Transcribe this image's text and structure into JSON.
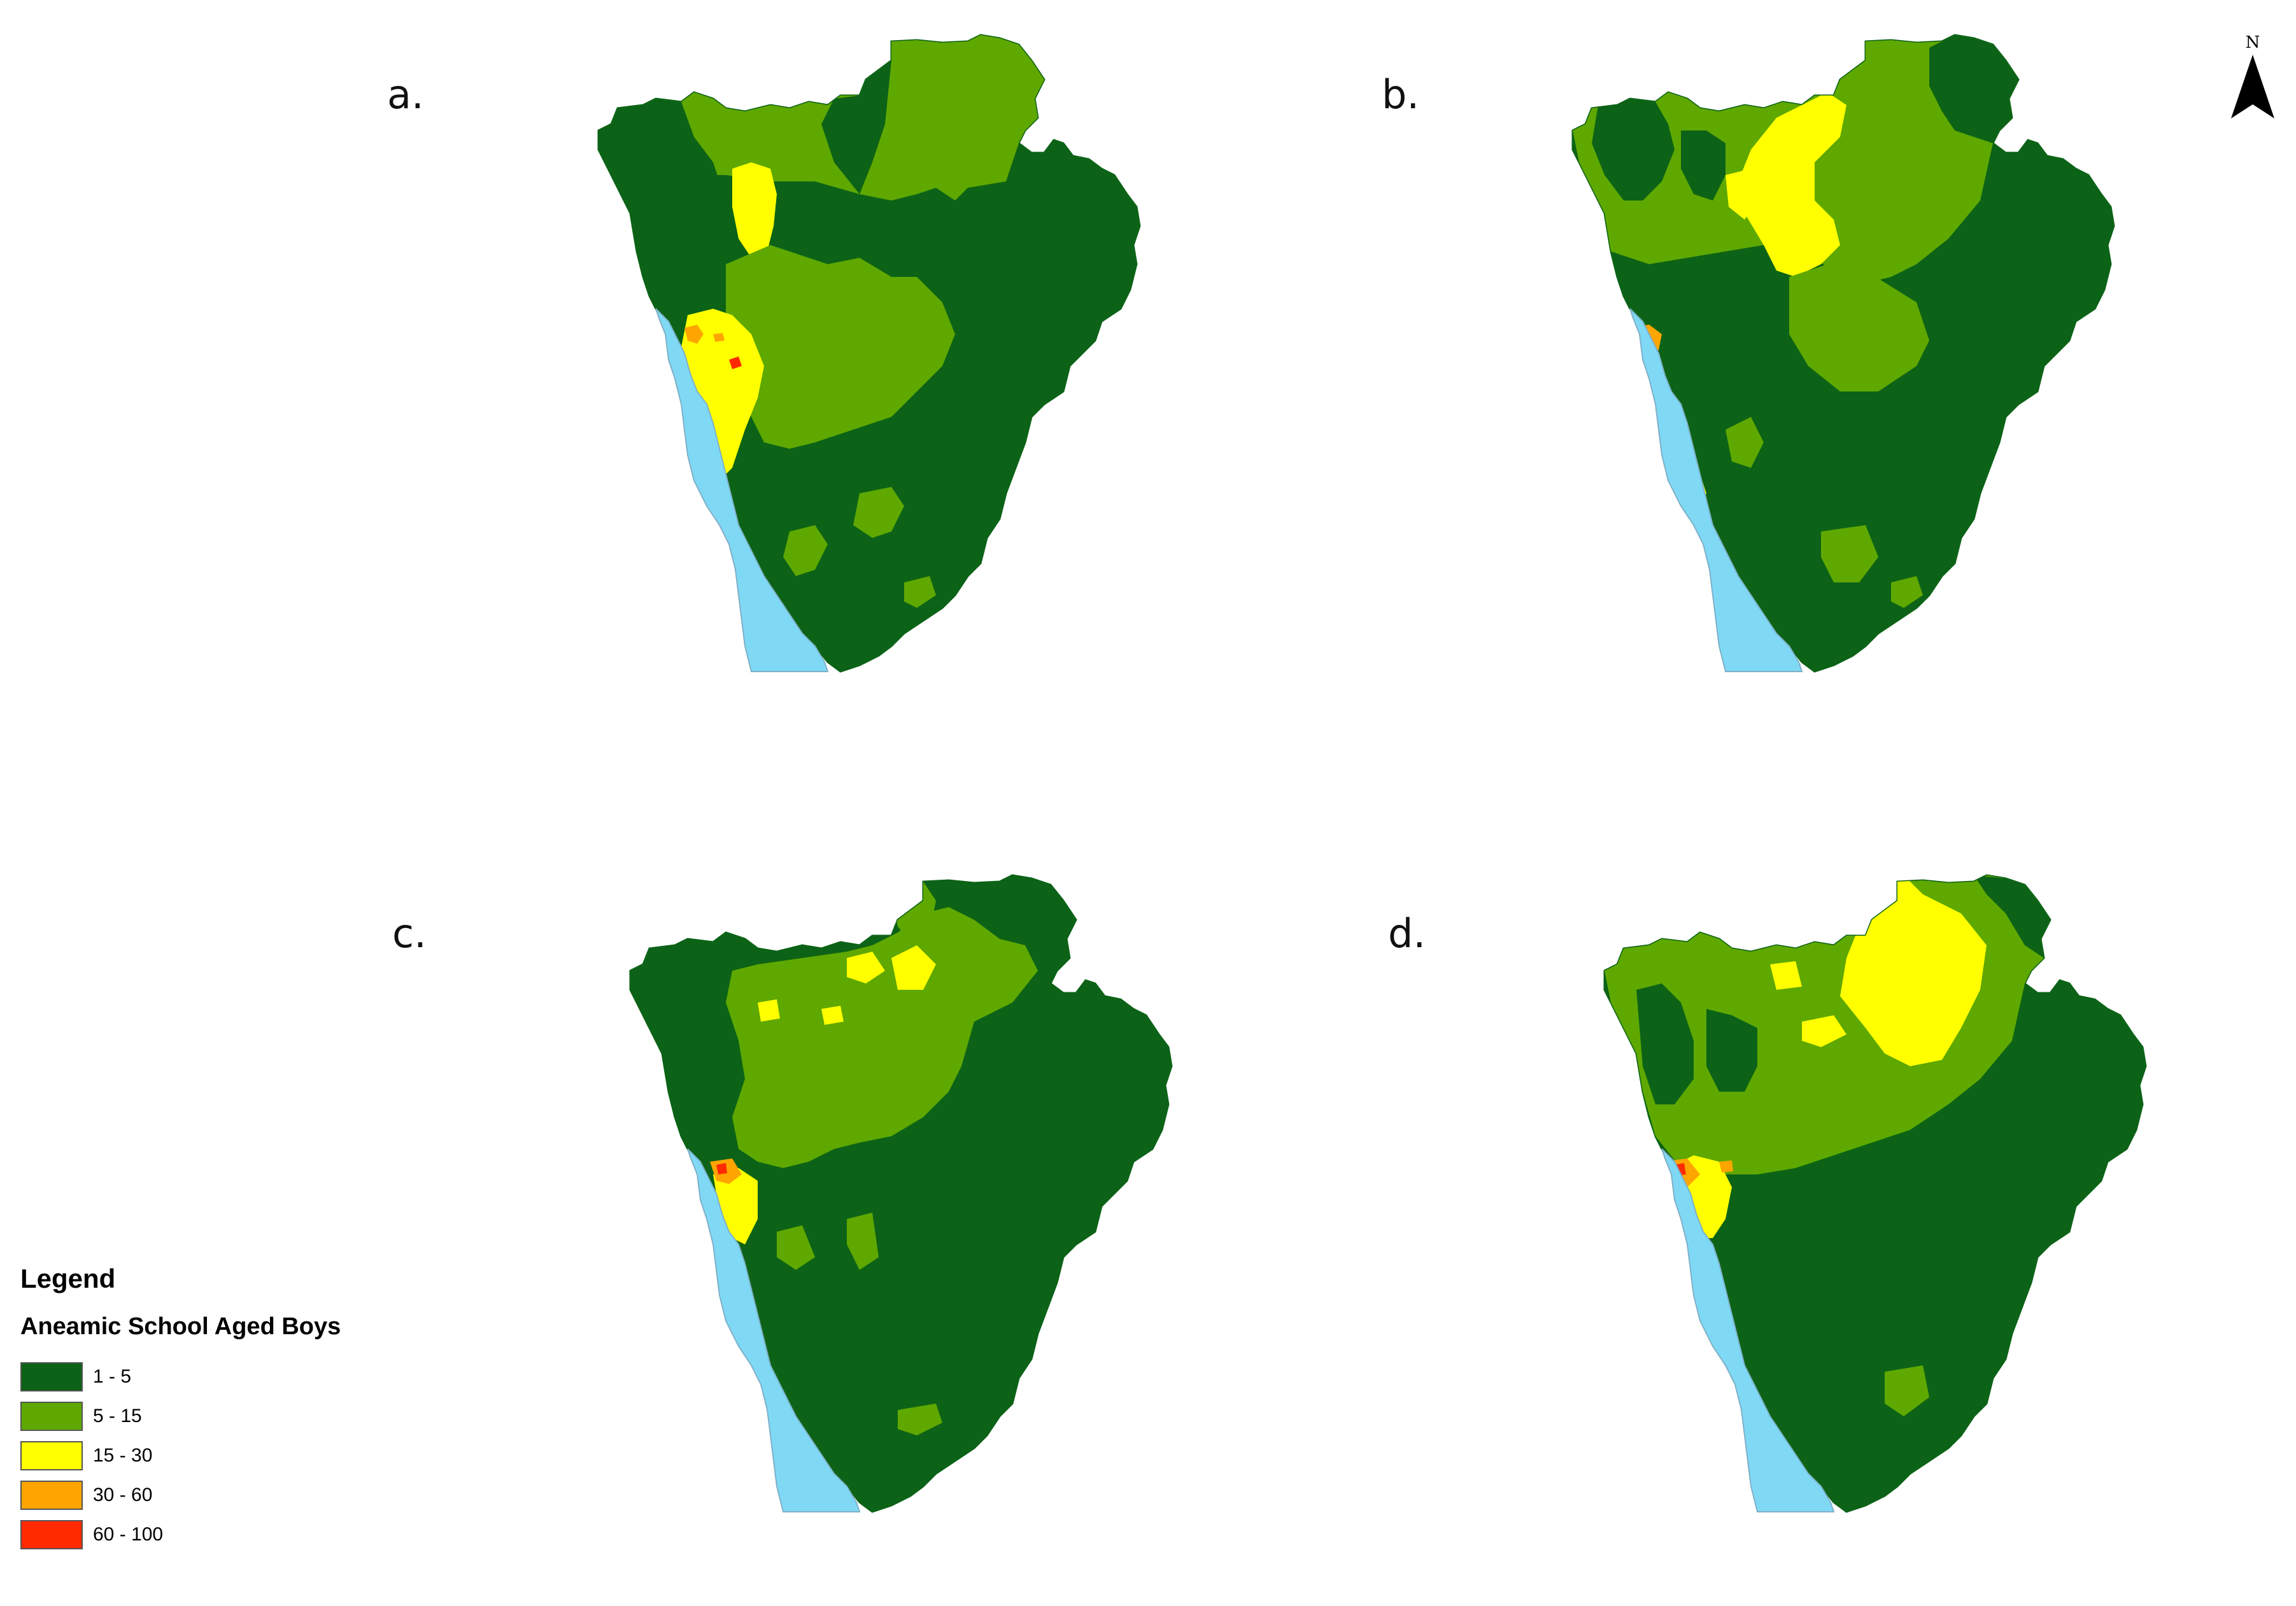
{
  "panels": [
    {
      "id": "a",
      "label": "a.",
      "map": "a"
    },
    {
      "id": "b",
      "label": "b.",
      "map": "b"
    },
    {
      "id": "c",
      "label": "c.",
      "map": "c"
    },
    {
      "id": "d",
      "label": "d.",
      "map": "d"
    }
  ],
  "north_arrow": {
    "label": "N",
    "icon": "north-arrow-icon"
  },
  "legend": {
    "title": "Legend",
    "subtitle": "Aneamic School Aged Boys",
    "classes": [
      {
        "label": "1 - 5",
        "color": "#0c6317"
      },
      {
        "label": "5 - 15",
        "color": "#5fa800"
      },
      {
        "label": "15 - 30",
        "color": "#ffff00"
      },
      {
        "label": "30 - 60",
        "color": "#ffa500"
      },
      {
        "label": "60 - 100",
        "color": "#ff2a00"
      }
    ]
  },
  "colors": {
    "lake": "#7fd9f5",
    "lake_border": "#7fb0c8"
  }
}
